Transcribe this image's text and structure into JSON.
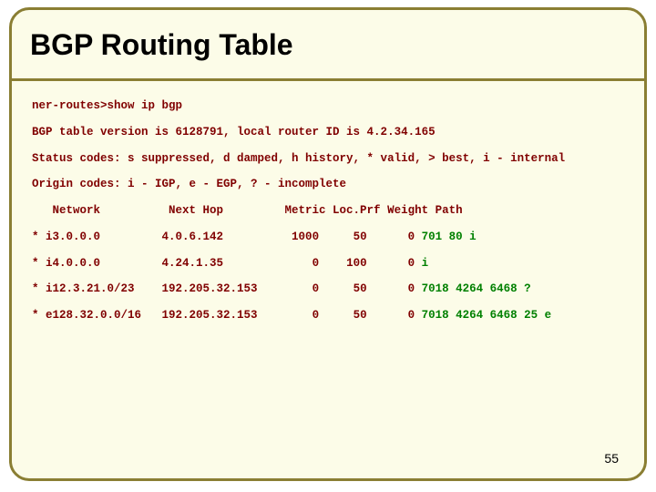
{
  "title": "BGP Routing Table",
  "page_number": "55",
  "colors": {
    "background": "#fcfce8",
    "border": "#8a7e33",
    "code_text": "#800000",
    "path_text": "#008000",
    "title_text": "#000000"
  },
  "fonts": {
    "title_family": "Arial",
    "title_size_pt": 24,
    "title_weight": "bold",
    "code_family": "Courier New",
    "code_size_pt": 9,
    "code_weight": "bold"
  },
  "lines": {
    "cmd": "ner-routes>show ip bgp",
    "ver": "BGP table version is 6128791, local router ID is 4.2.34.165",
    "status": "Status codes: s suppressed, d damped, h history, * valid, > best, i - internal",
    "origin": "Origin codes: i - IGP, e - EGP, ? - incomplete",
    "hdr": "   Network          Next Hop         Metric Loc.Prf Weight Path"
  },
  "routes": [
    {
      "star": "* ",
      "net": "i3.0.0.0         4.0.6.142          1000     50      0 ",
      "path": "701 80 i"
    },
    {
      "star": "* ",
      "net": "i4.0.0.0         4.24.1.35             0    100      0 ",
      "path": "i"
    },
    {
      "star": "* ",
      "net": "i12.3.21.0/23    192.205.32.153        0     50      0 ",
      "path": "7018 4264 6468 ?"
    },
    {
      "star": "* ",
      "net": "e128.32.0.0/16   192.205.32.153        0     50      0 ",
      "path": "7018 4264 6468 25 e"
    }
  ]
}
